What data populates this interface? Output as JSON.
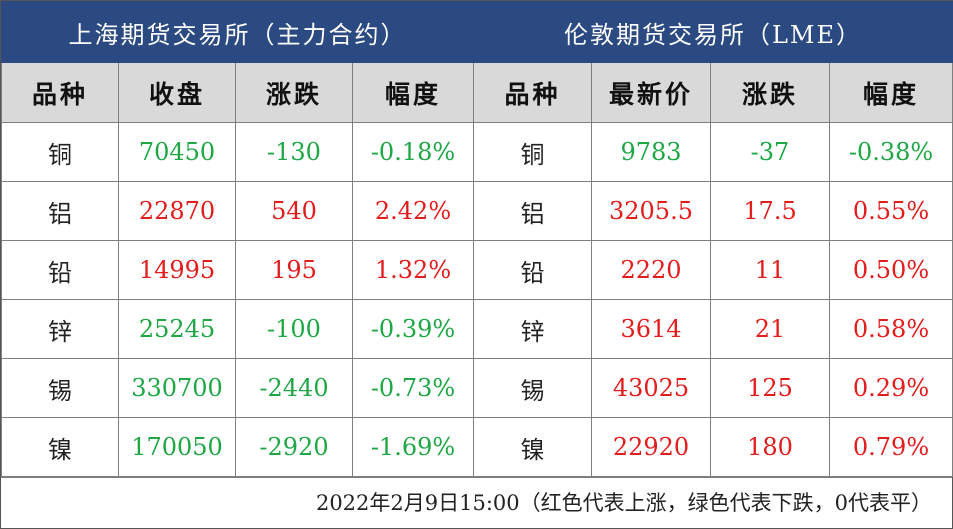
{
  "titles": {
    "left": "上海期货交易所（主力合约）",
    "right": "伦敦期货交易所（LME）"
  },
  "headers": {
    "left": [
      "品种",
      "收盘",
      "涨跌",
      "幅度"
    ],
    "right": [
      "品种",
      "最新价",
      "涨跌",
      "幅度"
    ]
  },
  "colors": {
    "up": "#e31c1c",
    "down": "#1fa746",
    "title_bg": "#2b4a82",
    "header_bg": "#d9d9d9"
  },
  "rows": [
    {
      "name": "铜",
      "shfe": {
        "close": "70450",
        "change": "-130",
        "pct": "-0.18%",
        "trend": "down"
      },
      "lme": {
        "name": "铜",
        "price": "9783",
        "change": "-37",
        "pct": "-0.38%",
        "trend": "down"
      }
    },
    {
      "name": "铝",
      "shfe": {
        "close": "22870",
        "change": "540",
        "pct": "2.42%",
        "trend": "up"
      },
      "lme": {
        "name": "铝",
        "price": "3205.5",
        "change": "17.5",
        "pct": "0.55%",
        "trend": "up"
      }
    },
    {
      "name": "铅",
      "shfe": {
        "close": "14995",
        "change": "195",
        "pct": "1.32%",
        "trend": "up"
      },
      "lme": {
        "name": "铅",
        "price": "2220",
        "change": "11",
        "pct": "0.50%",
        "trend": "up"
      }
    },
    {
      "name": "锌",
      "shfe": {
        "close": "25245",
        "change": "-100",
        "pct": "-0.39%",
        "trend": "down"
      },
      "lme": {
        "name": "锌",
        "price": "3614",
        "change": "21",
        "pct": "0.58%",
        "trend": "up"
      }
    },
    {
      "name": "锡",
      "shfe": {
        "close": "330700",
        "change": "-2440",
        "pct": "-0.73%",
        "trend": "down"
      },
      "lme": {
        "name": "锡",
        "price": "43025",
        "change": "125",
        "pct": "0.29%",
        "trend": "up"
      }
    },
    {
      "name": "镍",
      "shfe": {
        "close": "170050",
        "change": "-2920",
        "pct": "-1.69%",
        "trend": "down"
      },
      "lme": {
        "name": "镍",
        "price": "22920",
        "change": "180",
        "pct": "0.79%",
        "trend": "up"
      }
    }
  ],
  "footer": "2022年2月9日15:00（红色代表上涨，绿色代表下跌，0代表平）"
}
